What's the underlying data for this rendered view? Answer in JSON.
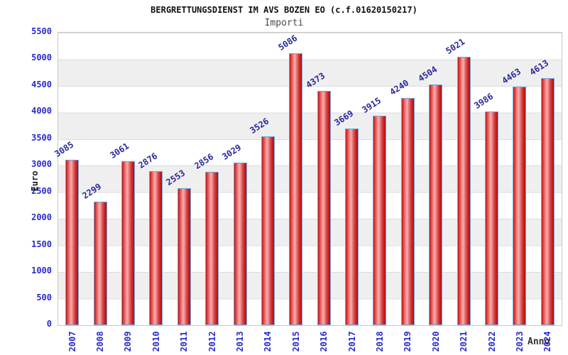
{
  "chart_data": {
    "type": "bar",
    "title": "BERGRETTUNGSDIENST IM AVS BOZEN EO (c.f.01620150217)",
    "subtitle": "Importi",
    "xlabel": "Anno",
    "ylabel": "Euro",
    "categories": [
      "2007",
      "2008",
      "2009",
      "2010",
      "2011",
      "2012",
      "2013",
      "2014",
      "2015",
      "2016",
      "2017",
      "2018",
      "2019",
      "2020",
      "2021",
      "2022",
      "2023",
      "2024"
    ],
    "values": [
      3085,
      2299,
      3061,
      2876,
      2553,
      2856,
      3029,
      3526,
      5086,
      4373,
      3669,
      3915,
      4240,
      4504,
      5021,
      3986,
      4463,
      4613
    ],
    "ylim": [
      0,
      5500
    ],
    "yticks": [
      0,
      500,
      1000,
      1500,
      2000,
      2500,
      3000,
      3500,
      4000,
      4500,
      5000,
      5500
    ],
    "grid": "horizontal-bands",
    "legend": "none",
    "colors": {
      "bar_fill": "#dd3333",
      "bar_highlight": "#f6abab",
      "bar_border": "#6fa8dc",
      "axis_tick_text": "#2a2ace",
      "value_label_text": "#28289b",
      "band_gray": "#efefef",
      "plot_border": "#c8c8c8",
      "title_text": "#111111",
      "subtitle_text": "#4a4a4a"
    }
  }
}
